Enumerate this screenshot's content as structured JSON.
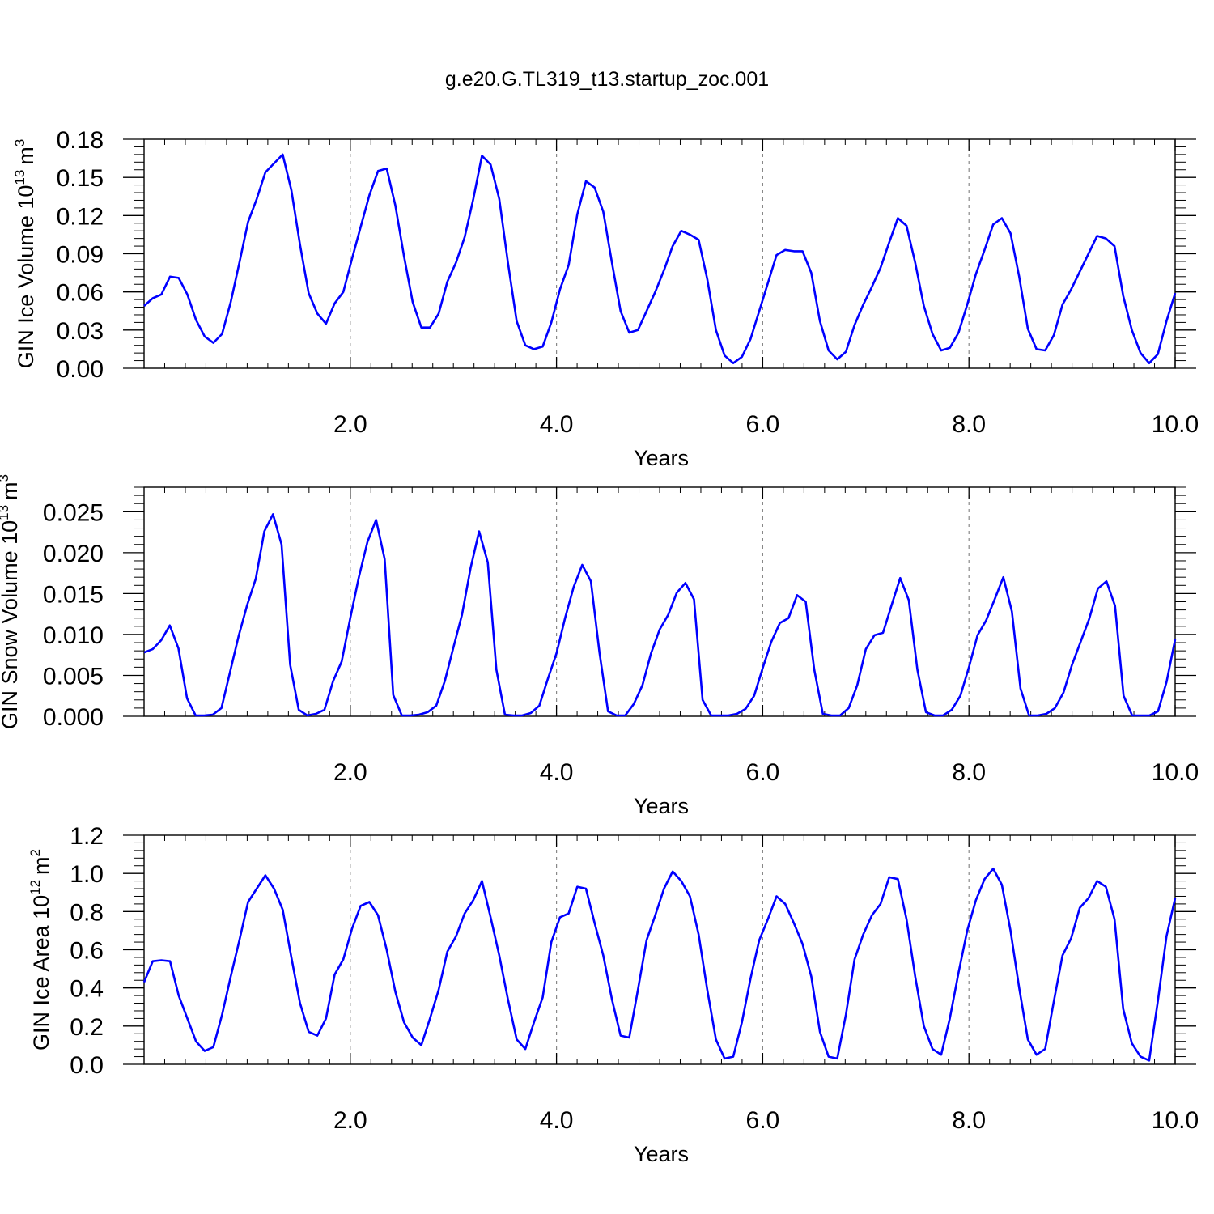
{
  "title": "g.e20.G.TL319_t13.startup_zoc.001",
  "chart_data": [
    {
      "type": "line",
      "ylabel": "GIN Ice Volume 10",
      "ylabel_exp": "13",
      "ylabel_unit": "m",
      "ylabel_unit_exp": "3",
      "xlabel": "Years",
      "xlim": [
        0.0,
        10.0
      ],
      "ylim": [
        0.0,
        0.18
      ],
      "xticks": [
        2.0,
        4.0,
        6.0,
        8.0,
        10.0
      ],
      "xtick_labels": [
        "2.0",
        "4.0",
        "6.0",
        "8.0",
        "10.0"
      ],
      "yticks": [
        0.0,
        0.03,
        0.06,
        0.09,
        0.12,
        0.15,
        0.18
      ],
      "ytick_labels": [
        "0.00",
        "0.03",
        "0.06",
        "0.09",
        "0.12",
        "0.15",
        "0.18"
      ],
      "grid": "dashed vertical at major x ticks",
      "series": [
        {
          "color": "#0000ff",
          "values": [
            0.049,
            0.055,
            0.058,
            0.072,
            0.071,
            0.058,
            0.038,
            0.025,
            0.02,
            0.027,
            0.052,
            0.083,
            0.115,
            0.133,
            0.154,
            0.161,
            0.168,
            0.14,
            0.097,
            0.059,
            0.043,
            0.035,
            0.051,
            0.06,
            0.086,
            0.111,
            0.136,
            0.155,
            0.157,
            0.128,
            0.088,
            0.052,
            0.032,
            0.032,
            0.043,
            0.068,
            0.083,
            0.103,
            0.133,
            0.167,
            0.16,
            0.133,
            0.083,
            0.037,
            0.018,
            0.015,
            0.017,
            0.036,
            0.062,
            0.081,
            0.121,
            0.147,
            0.142,
            0.123,
            0.083,
            0.045,
            0.028,
            0.03,
            0.045,
            0.06,
            0.077,
            0.096,
            0.108,
            0.105,
            0.101,
            0.07,
            0.03,
            0.01,
            0.004,
            0.009,
            0.023,
            0.045,
            0.067,
            0.089,
            0.093,
            0.092,
            0.092,
            0.075,
            0.037,
            0.014,
            0.007,
            0.013,
            0.034,
            0.05,
            0.064,
            0.079,
            0.099,
            0.118,
            0.112,
            0.083,
            0.049,
            0.027,
            0.014,
            0.016,
            0.028,
            0.05,
            0.074,
            0.093,
            0.113,
            0.118,
            0.106,
            0.072,
            0.031,
            0.015,
            0.014,
            0.026,
            0.05,
            0.062,
            0.076,
            0.09,
            0.104,
            0.102,
            0.096,
            0.057,
            0.03,
            0.012,
            0.004,
            0.011,
            0.037,
            0.059
          ]
        }
      ]
    },
    {
      "type": "line",
      "ylabel": "GIN Snow Volume 10",
      "ylabel_exp": "13",
      "ylabel_unit": "m",
      "ylabel_unit_exp": "3",
      "xlabel": "Years",
      "xlim": [
        0.0,
        10.0
      ],
      "ylim": [
        0.0,
        0.028
      ],
      "xticks": [
        2.0,
        4.0,
        6.0,
        8.0,
        10.0
      ],
      "xtick_labels": [
        "2.0",
        "4.0",
        "6.0",
        "8.0",
        "10.0"
      ],
      "yticks": [
        0.0,
        0.005,
        0.01,
        0.015,
        0.02,
        0.025
      ],
      "ytick_labels": [
        "0.000",
        "0.005",
        "0.010",
        "0.015",
        "0.020",
        "0.025"
      ],
      "grid": "dashed vertical at major x ticks",
      "series": [
        {
          "color": "#0000ff",
          "values": [
            0.0078,
            0.0082,
            0.0093,
            0.0111,
            0.0083,
            0.0022,
            0.0001,
            0.0001,
            0.0002,
            0.001,
            0.0054,
            0.0098,
            0.0136,
            0.0168,
            0.0226,
            0.0247,
            0.021,
            0.0063,
            0.0008,
            0.0001,
            0.0003,
            0.0008,
            0.0043,
            0.0067,
            0.012,
            0.017,
            0.0213,
            0.024,
            0.0192,
            0.0026,
            0.0001,
            0.0001,
            0.0002,
            0.0005,
            0.0013,
            0.0043,
            0.0084,
            0.0124,
            0.0181,
            0.0226,
            0.0188,
            0.0057,
            0.0002,
            0.0001,
            0.0001,
            0.0004,
            0.0013,
            0.0046,
            0.0077,
            0.012,
            0.0158,
            0.0185,
            0.0165,
            0.0078,
            0.0006,
            0.0001,
            0.0001,
            0.0015,
            0.0038,
            0.0077,
            0.0106,
            0.0124,
            0.0151,
            0.0163,
            0.0143,
            0.002,
            0.0001,
            0.0001,
            0.0001,
            0.0003,
            0.0009,
            0.0025,
            0.0059,
            0.0091,
            0.0114,
            0.012,
            0.0148,
            0.014,
            0.0057,
            0.0003,
            0.0001,
            0.0001,
            0.001,
            0.0038,
            0.0082,
            0.0099,
            0.0102,
            0.0136,
            0.0169,
            0.0142,
            0.0057,
            0.0005,
            0.0001,
            0.0001,
            0.0008,
            0.0025,
            0.006,
            0.0099,
            0.0117,
            0.0143,
            0.017,
            0.0128,
            0.0034,
            0.0001,
            0.0001,
            0.0003,
            0.001,
            0.0029,
            0.0063,
            0.0091,
            0.0119,
            0.0156,
            0.0165,
            0.0135,
            0.0025,
            0.0001,
            0.0001,
            0.0001,
            0.0006,
            0.0042,
            0.0094
          ]
        }
      ]
    },
    {
      "type": "line",
      "ylabel": "GIN Ice Area 10",
      "ylabel_exp": "12",
      "ylabel_unit": "m",
      "ylabel_unit_exp": "2",
      "xlabel": "Years",
      "xlim": [
        0.0,
        10.0
      ],
      "ylim": [
        0.0,
        1.2
      ],
      "xticks": [
        2.0,
        4.0,
        6.0,
        8.0,
        10.0
      ],
      "xtick_labels": [
        "2.0",
        "4.0",
        "6.0",
        "8.0",
        "10.0"
      ],
      "yticks": [
        0.0,
        0.2,
        0.4,
        0.6,
        0.8,
        1.0,
        1.2
      ],
      "ytick_labels": [
        "0.0",
        "0.2",
        "0.4",
        "0.6",
        "0.8",
        "1.0",
        "1.2"
      ],
      "grid": "dashed vertical at major x ticks",
      "series": [
        {
          "color": "#0000ff",
          "values": [
            0.43,
            0.54,
            0.545,
            0.54,
            0.36,
            0.24,
            0.12,
            0.07,
            0.09,
            0.26,
            0.46,
            0.65,
            0.85,
            0.92,
            0.99,
            0.92,
            0.81,
            0.56,
            0.32,
            0.17,
            0.15,
            0.24,
            0.47,
            0.55,
            0.71,
            0.83,
            0.85,
            0.78,
            0.6,
            0.38,
            0.22,
            0.14,
            0.1,
            0.24,
            0.39,
            0.59,
            0.67,
            0.79,
            0.86,
            0.96,
            0.77,
            0.57,
            0.34,
            0.13,
            0.08,
            0.22,
            0.35,
            0.64,
            0.77,
            0.79,
            0.93,
            0.92,
            0.74,
            0.57,
            0.34,
            0.15,
            0.14,
            0.39,
            0.65,
            0.78,
            0.92,
            1.01,
            0.96,
            0.88,
            0.68,
            0.39,
            0.13,
            0.03,
            0.04,
            0.22,
            0.45,
            0.65,
            0.76,
            0.88,
            0.84,
            0.74,
            0.63,
            0.46,
            0.17,
            0.04,
            0.03,
            0.26,
            0.55,
            0.68,
            0.78,
            0.84,
            0.98,
            0.97,
            0.76,
            0.46,
            0.2,
            0.08,
            0.05,
            0.24,
            0.48,
            0.7,
            0.86,
            0.97,
            1.025,
            0.94,
            0.7,
            0.4,
            0.13,
            0.05,
            0.08,
            0.33,
            0.57,
            0.66,
            0.82,
            0.87,
            0.96,
            0.93,
            0.76,
            0.29,
            0.11,
            0.04,
            0.02,
            0.33,
            0.67,
            0.87
          ]
        }
      ]
    }
  ]
}
